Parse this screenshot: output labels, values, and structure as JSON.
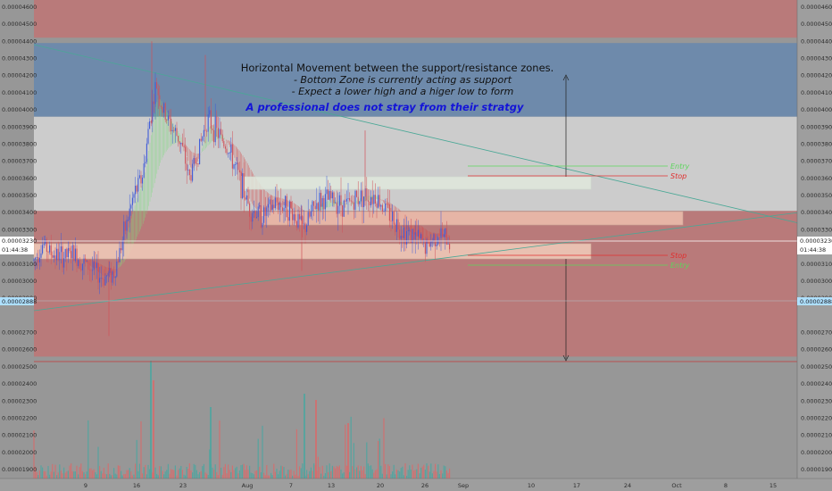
{
  "chart_data": {
    "type": "candlestick",
    "price_axis": {
      "min": 1.89e-05,
      "max": 4.61e-05,
      "ticks": [
        "0.00004600",
        "0.00004500",
        "0.00004400",
        "0.00004300",
        "0.00004200",
        "0.00004100",
        "0.00004000",
        "0.00003900",
        "0.00003800",
        "0.00003700",
        "0.00003600",
        "0.00003500",
        "0.00003400",
        "0.00003300",
        "0.00003100",
        "0.00003000",
        "0.00002900",
        "0.00002700",
        "0.00002600",
        "0.00002500",
        "0.00002400",
        "0.00002300",
        "0.00002200",
        "0.00002100",
        "0.00002000",
        "0.00001900"
      ]
    },
    "time_axis": {
      "labels": [
        "9",
        "16",
        "23",
        "Aug",
        "7",
        "13",
        "20",
        "26",
        "Sep",
        "10",
        "17",
        "24",
        "Oct",
        "8",
        "15"
      ]
    },
    "current_price": {
      "value": 3.23e-05,
      "label": "0.00003230",
      "countdown": "01:44:38"
    },
    "marked_level": {
      "value": 2.888e-05,
      "label": "0.00002888"
    },
    "zones": [
      {
        "name": "upper-resistance",
        "from": 4.39e-05,
        "to": 4.61e-05,
        "color": "#b97a7a"
      },
      {
        "name": "blue-resistance",
        "from": 3.96e-05,
        "to": 4.39e-05,
        "color": "#6e8aab"
      },
      {
        "name": "neutral-band",
        "from": 3.41e-05,
        "to": 3.96e-05,
        "color": "#cccccc"
      },
      {
        "name": "lower-support",
        "from": 2.56e-05,
        "to": 3.41e-05,
        "color": "#b97a7a"
      }
    ],
    "annotation": {
      "title": "Horizontal Movement between the support/resistance zones.",
      "lines": [
        "- Bottom Zone is currently acting as support",
        "- Expect a lower high and a higer low to form"
      ],
      "highlight": "A professional does not stray from their stratgy"
    },
    "trade_labels": {
      "upper_entry": "Entry",
      "upper_stop": "Stop",
      "lower_stop": "Stop",
      "lower_entry": "Entry"
    },
    "colors": {
      "bull": "#3f5bd8",
      "bear": "#d0525a",
      "ema_bull": "#7fdc7f",
      "ema_bear": "#d44848",
      "volume_bull": "#4aa6a0",
      "volume_bear": "#d86a6a",
      "trendline": "#4aa896",
      "entry": "#5cd65c",
      "stop": "#e03030"
    }
  }
}
